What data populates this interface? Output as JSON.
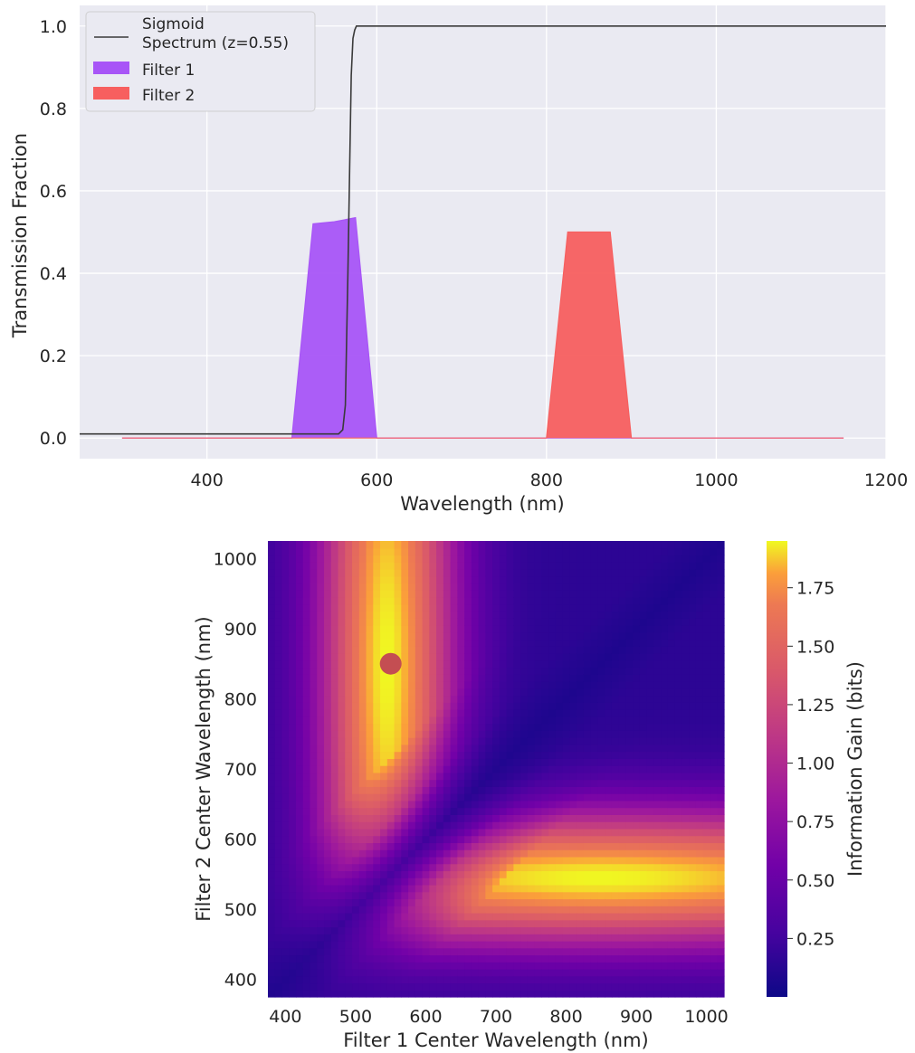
{
  "chart_data": [
    {
      "type": "line",
      "xlabel": "Wavelength (nm)",
      "ylabel": "Transmission Fraction",
      "xlim": [
        250,
        1200
      ],
      "ylim": [
        -0.05,
        1.05
      ],
      "xticks": [
        400,
        600,
        800,
        1000,
        1200
      ],
      "yticks": [
        0.0,
        0.2,
        0.4,
        0.6,
        0.8,
        1.0
      ],
      "grid": true,
      "legend_position": "top-left",
      "series": [
        {
          "name": "Sigmoid\nSpectrum (z=0.55)",
          "kind": "line",
          "color": "#3a3a3a",
          "x": [
            250,
            555,
            560,
            563,
            566,
            568,
            570,
            572,
            574,
            576,
            580,
            600,
            800,
            1000,
            1200
          ],
          "y": [
            0.01,
            0.01,
            0.02,
            0.08,
            0.4,
            0.65,
            0.88,
            0.97,
            0.99,
            1.0,
            1.0,
            1.0,
            1.0,
            1.0,
            1.0
          ]
        },
        {
          "name": "Filter 1",
          "kind": "area",
          "color": "#a855f7",
          "x": [
            300,
            500,
            525,
            550,
            575,
            600,
            1150
          ],
          "y": [
            0.0,
            0.0,
            0.52,
            0.525,
            0.535,
            0.0,
            0.0
          ]
        },
        {
          "name": "Filter 2",
          "kind": "area",
          "color": "#f75f5f",
          "x": [
            300,
            800,
            825,
            850,
            875,
            900,
            1150
          ],
          "y": [
            0.0,
            0.0,
            0.5,
            0.5,
            0.5,
            0.0,
            0.0
          ]
        }
      ]
    },
    {
      "type": "heatmap",
      "xlabel": "Filter 1 Center Wavelength (nm)",
      "ylabel": "Filter 2 Center Wavelength (nm)",
      "xlim": [
        375,
        1025
      ],
      "ylim": [
        375,
        1025
      ],
      "xticks": [
        400,
        500,
        600,
        700,
        800,
        900,
        1000
      ],
      "yticks": [
        400,
        500,
        600,
        700,
        800,
        900,
        1000
      ],
      "colormap": "plasma",
      "colorbar": {
        "label": "Information Gain (bits)",
        "range": [
          0.0,
          1.95
        ],
        "ticks": [
          "0.25",
          "0.50",
          "0.75",
          "1.00",
          "1.25",
          "1.50",
          "1.75"
        ]
      },
      "peak_value": 1.95,
      "optimum_point": {
        "x": 550,
        "y": 850,
        "color": "#c44e52"
      }
    }
  ]
}
